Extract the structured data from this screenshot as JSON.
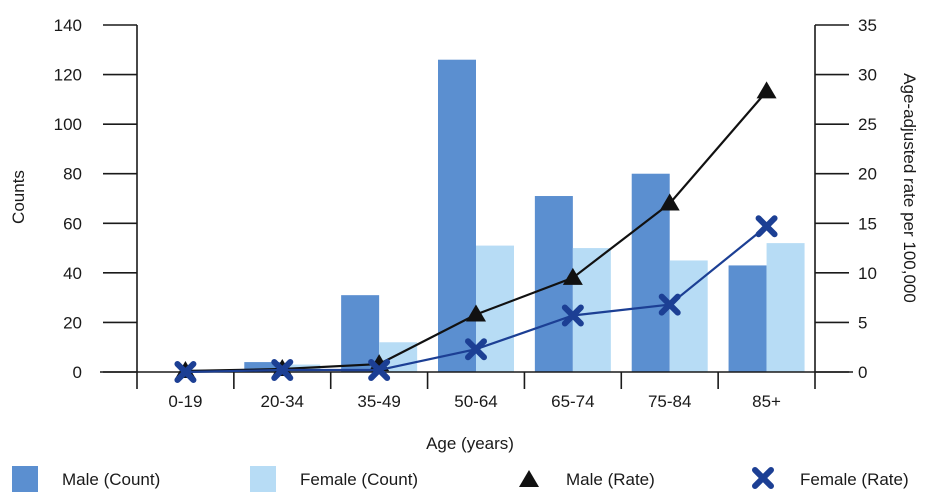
{
  "chart_data": {
    "type": "bar",
    "categories": [
      "0-19",
      "20-34",
      "35-49",
      "50-64",
      "65-74",
      "75-84",
      "85+"
    ],
    "bar_series": [
      {
        "name": "Male (Count)",
        "values": [
          0,
          4,
          31,
          126,
          71,
          80,
          43
        ],
        "color": "#5b8fd0",
        "axis": "left"
      },
      {
        "name": "Female (Count)",
        "values": [
          1,
          3,
          12,
          51,
          50,
          45,
          52
        ],
        "color": "#b7dcf5",
        "axis": "left"
      }
    ],
    "line_series": [
      {
        "name": "Male (Rate)",
        "values": [
          0.1,
          0.3,
          0.8,
          5.8,
          9.5,
          17.0,
          28.3
        ],
        "color": "#111111",
        "marker": "triangle",
        "axis": "right"
      },
      {
        "name": "Female (Rate)",
        "values": [
          0.0,
          0.2,
          0.2,
          2.3,
          5.7,
          6.8,
          14.7
        ],
        "color": "#1c3f94",
        "marker": "x",
        "axis": "right"
      }
    ],
    "xlabel": "Age (years)",
    "ylabel": "Counts",
    "ylabel_right": "Age-adjusted rate per 100,000",
    "ylim": [
      0,
      140
    ],
    "yticks": [
      0,
      20,
      40,
      60,
      80,
      100,
      120,
      140
    ],
    "ylim_right": [
      0,
      35
    ],
    "yticks_right": [
      0,
      5,
      10,
      15,
      20,
      25,
      30,
      35
    ],
    "grid": false,
    "legend_position": "bottom"
  }
}
